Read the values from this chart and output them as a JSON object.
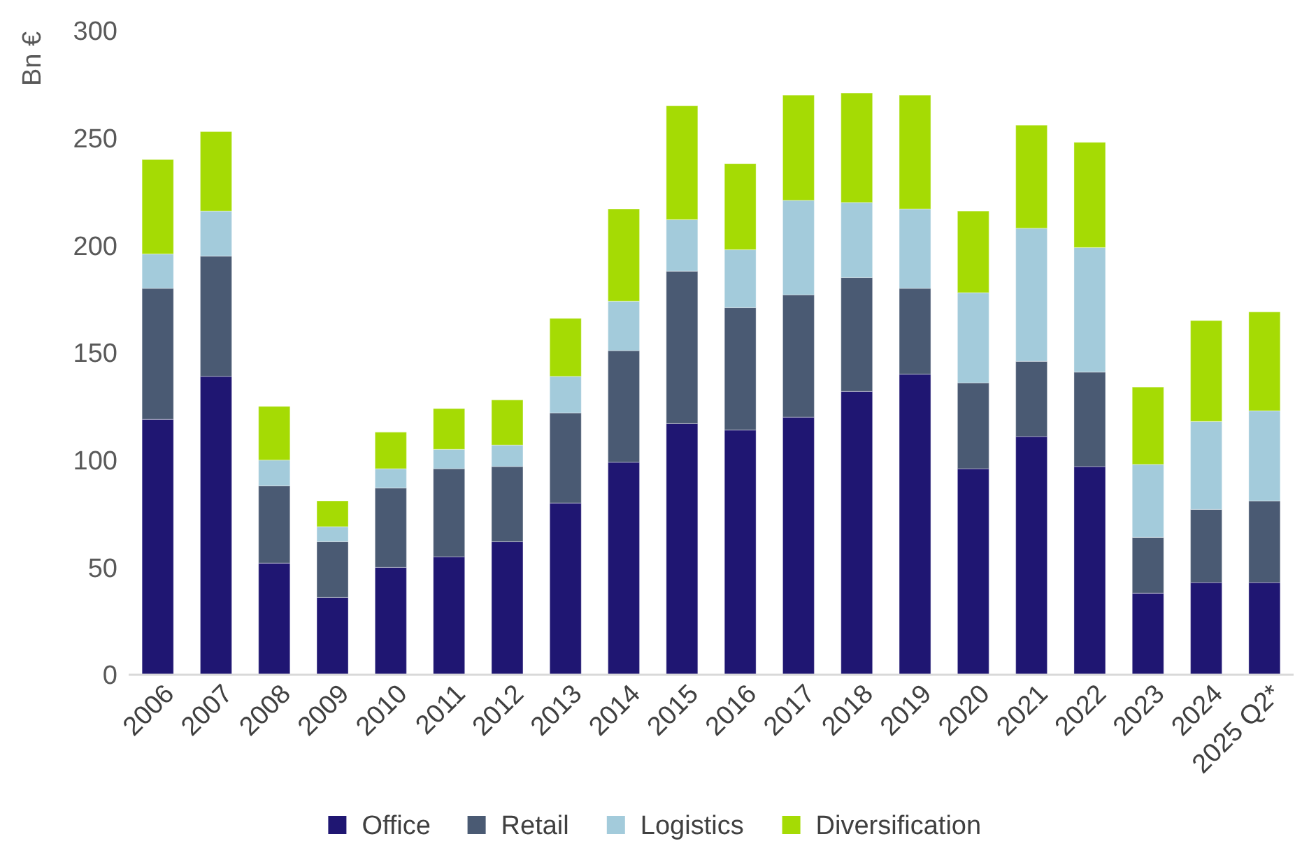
{
  "chart_data": {
    "type": "bar",
    "stacked": true,
    "ylabel": "Bn €",
    "ylim": [
      0,
      300
    ],
    "yticks": [
      0,
      50,
      100,
      150,
      200,
      250,
      300
    ],
    "grid": false,
    "legend": "bottom",
    "categories": [
      "2006",
      "2007",
      "2008",
      "2009",
      "2010",
      "2011",
      "2012",
      "2013",
      "2014",
      "2015",
      "2016",
      "2017",
      "2018",
      "2019",
      "2020",
      "2021",
      "2022",
      "2023",
      "2024",
      "2025 Q2*"
    ],
    "series": [
      {
        "name": "Office",
        "color": "#1f1672",
        "values": [
          119,
          139,
          52,
          36,
          50,
          55,
          62,
          80,
          99,
          117,
          114,
          120,
          132,
          140,
          96,
          111,
          97,
          38,
          43,
          43
        ]
      },
      {
        "name": "Retail",
        "color": "#4a5a73",
        "values": [
          61,
          56,
          36,
          26,
          37,
          41,
          35,
          42,
          52,
          71,
          57,
          57,
          53,
          40,
          40,
          35,
          44,
          26,
          34,
          38
        ]
      },
      {
        "name": "Logistics",
        "color": "#a3cbdb",
        "values": [
          16,
          21,
          12,
          7,
          9,
          9,
          10,
          17,
          23,
          24,
          27,
          44,
          35,
          37,
          42,
          62,
          58,
          34,
          41,
          42
        ]
      },
      {
        "name": "Diversification",
        "color": "#a5db04",
        "values": [
          44,
          37,
          25,
          12,
          17,
          19,
          21,
          27,
          43,
          53,
          40,
          49,
          51,
          53,
          38,
          48,
          49,
          36,
          47,
          46
        ]
      }
    ]
  }
}
